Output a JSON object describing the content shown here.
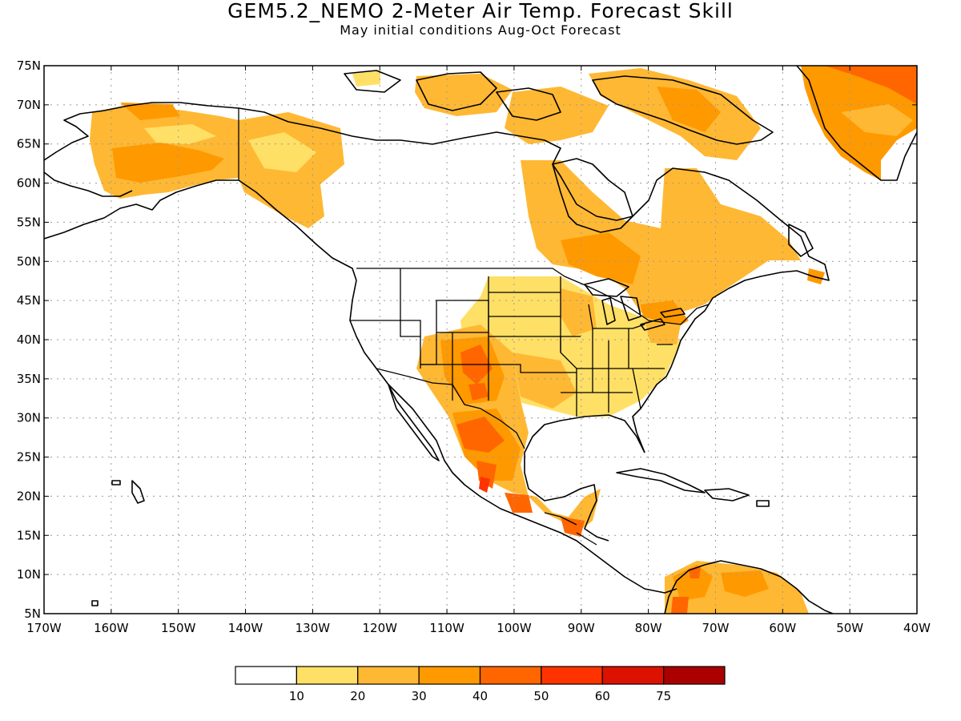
{
  "title": "GEM5.2_NEMO 2-Meter Air Temp. Forecast Skill",
  "subtitle": "May initial conditions  Aug-Oct Forecast",
  "map": {
    "extent": {
      "lon": [
        -170,
        -40
      ],
      "lat": [
        5,
        75
      ]
    },
    "lat_labels": [
      "75N",
      "70N",
      "65N",
      "60N",
      "55N",
      "50N",
      "45N",
      "40N",
      "35N",
      "30N",
      "25N",
      "20N",
      "15N",
      "10N",
      "5N"
    ],
    "lon_labels": [
      "170W",
      "160W",
      "150W",
      "140W",
      "130W",
      "120W",
      "110W",
      "100W",
      "90W",
      "80W",
      "70W",
      "60W",
      "50W",
      "40W"
    ],
    "gridlines": "dotted"
  },
  "colorbar": {
    "colors": [
      "#ffffff",
      "#ffe066",
      "#ffb833",
      "#ff9900",
      "#ff6600",
      "#ff3300",
      "#dd1100",
      "#aa0000"
    ],
    "labels": [
      "10",
      "20",
      "30",
      "40",
      "50",
      "60",
      "75"
    ]
  }
}
